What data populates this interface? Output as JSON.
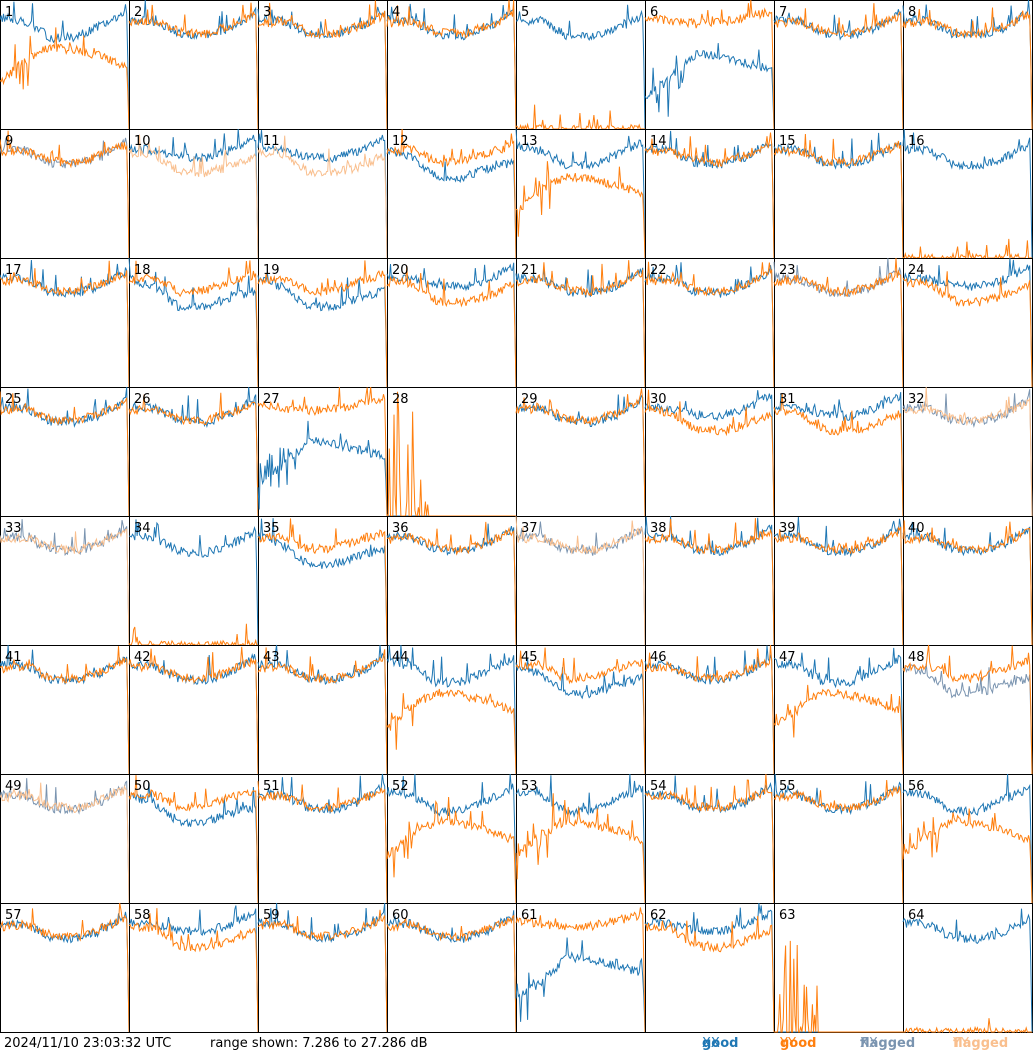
{
  "footer": {
    "timestamp": "2024/11/10 23:03:32 UTC",
    "range_text": "range shown: 7.286 to 27.286 dB"
  },
  "legend": [
    {
      "word": "good",
      "pol": "XX",
      "color": "#1f77b4"
    },
    {
      "word": "good",
      "pol": "YY",
      "color": "#ff7f0e"
    },
    {
      "word": "flagged",
      "pol": "XX",
      "color": "#7a94b0"
    },
    {
      "word": "flagged",
      "pol": "YY",
      "color": "#f9bf8e"
    }
  ],
  "colors": {
    "good_xx": "#1f77b4",
    "good_yy": "#ff7f0e",
    "flagged_xx": "#7a94b0",
    "flagged_yy": "#f9bf8e"
  },
  "chart_data": {
    "type": "line",
    "layout": "8x8 grid of small multiples (antenna spectra)",
    "ylim": [
      7.286,
      27.286
    ],
    "yunit": "dB",
    "styles": {
      "standard": {
        "xx": [
          24.2,
          24.0,
          22.0,
          21.8,
          23.0,
          25.5,
          7.286
        ],
        "yy": [
          23.6,
          24.0,
          22.3,
          22.0,
          23.3,
          25.0,
          7.286
        ]
      },
      "xx_high": {
        "xx": [
          24.2,
          24.0,
          23.0,
          22.8,
          24.0,
          26.0,
          7.286
        ],
        "yy": [
          23.6,
          23.4,
          20.6,
          20.4,
          21.5,
          23.2,
          7.286
        ]
      },
      "yy_high": {
        "xx": [
          24.0,
          22.8,
          19.6,
          19.8,
          21.2,
          22.2,
          7.286
        ],
        "yy": [
          23.8,
          24.2,
          22.0,
          22.3,
          23.6,
          24.8,
          7.286
        ]
      },
      "yy_rolloff": {
        "xx": [
          24.6,
          24.0,
          21.4,
          21.6,
          23.4,
          25.2,
          7.286
        ],
        "yy": [
          14.5,
          18.0,
          20.0,
          19.5,
          18.6,
          17.0,
          7.286
        ]
      },
      "xx_rolloff": {
        "xx": [
          12.5,
          15.0,
          19.0,
          18.5,
          17.5,
          16.5,
          7.286
        ],
        "yy": [
          24.6,
          24.0,
          23.6,
          23.8,
          24.6,
          25.5,
          7.286
        ]
      },
      "noise": {
        "xx": [
          7.286,
          7.286,
          7.286,
          7.286,
          7.286,
          7.286,
          7.286
        ],
        "yy": [
          7.286,
          7.286,
          7.286,
          7.286,
          7.286,
          7.286,
          7.286
        ]
      },
      "xx_only": {
        "xx": [
          24.2,
          24.0,
          21.8,
          21.6,
          22.8,
          25.0,
          7.286
        ],
        "yy": [
          7.286,
          7.286,
          7.286,
          7.286,
          7.286,
          7.286,
          7.286
        ]
      }
    },
    "panels": [
      {
        "id": "1",
        "style": "yy_rolloff",
        "flag": "none"
      },
      {
        "id": "2",
        "style": "standard",
        "flag": "none"
      },
      {
        "id": "3",
        "style": "standard",
        "flag": "none"
      },
      {
        "id": "4",
        "style": "standard",
        "flag": "none"
      },
      {
        "id": "5",
        "style": "xx_only",
        "flag": "none"
      },
      {
        "id": "6",
        "style": "xx_rolloff",
        "flag": "none"
      },
      {
        "id": "7",
        "style": "standard",
        "flag": "none"
      },
      {
        "id": "8",
        "style": "standard",
        "flag": "none"
      },
      {
        "id": "9",
        "style": "standard",
        "flag": "xx"
      },
      {
        "id": "10",
        "style": "xx_high",
        "flag": "yy"
      },
      {
        "id": "11",
        "style": "xx_high",
        "flag": "yy"
      },
      {
        "id": "12",
        "style": "yy_high",
        "flag": "none"
      },
      {
        "id": "13",
        "style": "yy_rolloff",
        "flag": "none"
      },
      {
        "id": "14",
        "style": "standard",
        "flag": "none"
      },
      {
        "id": "15",
        "style": "standard",
        "flag": "none"
      },
      {
        "id": "16",
        "style": "xx_only",
        "flag": "none"
      },
      {
        "id": "17",
        "style": "standard",
        "flag": "none"
      },
      {
        "id": "18",
        "style": "yy_high",
        "flag": "none"
      },
      {
        "id": "19",
        "style": "yy_high",
        "flag": "none"
      },
      {
        "id": "20",
        "style": "xx_high",
        "flag": "none"
      },
      {
        "id": "21",
        "style": "standard",
        "flag": "none"
      },
      {
        "id": "22",
        "style": "standard",
        "flag": "none"
      },
      {
        "id": "23",
        "style": "standard",
        "flag": "xx"
      },
      {
        "id": "24",
        "style": "xx_high",
        "flag": "none"
      },
      {
        "id": "25",
        "style": "standard",
        "flag": "none"
      },
      {
        "id": "26",
        "style": "standard",
        "flag": "none"
      },
      {
        "id": "27",
        "style": "xx_rolloff",
        "flag": "none"
      },
      {
        "id": "28",
        "style": "noise",
        "flag": "none"
      },
      {
        "id": "29",
        "style": "standard",
        "flag": "none"
      },
      {
        "id": "30",
        "style": "xx_high",
        "flag": "none"
      },
      {
        "id": "31",
        "style": "xx_high",
        "flag": "none"
      },
      {
        "id": "32",
        "style": "standard",
        "flag": "both"
      },
      {
        "id": "33",
        "style": "standard",
        "flag": "both"
      },
      {
        "id": "34",
        "style": "xx_only",
        "flag": "none"
      },
      {
        "id": "35",
        "style": "yy_high",
        "flag": "none"
      },
      {
        "id": "36",
        "style": "standard",
        "flag": "none"
      },
      {
        "id": "37",
        "style": "standard",
        "flag": "both"
      },
      {
        "id": "38",
        "style": "standard",
        "flag": "none"
      },
      {
        "id": "39",
        "style": "standard",
        "flag": "none"
      },
      {
        "id": "40",
        "style": "standard",
        "flag": "none"
      },
      {
        "id": "41",
        "style": "standard",
        "flag": "none"
      },
      {
        "id": "42",
        "style": "standard",
        "flag": "none"
      },
      {
        "id": "43",
        "style": "standard",
        "flag": "none"
      },
      {
        "id": "44",
        "style": "yy_rolloff",
        "flag": "none"
      },
      {
        "id": "45",
        "style": "yy_high",
        "flag": "none"
      },
      {
        "id": "46",
        "style": "standard",
        "flag": "none"
      },
      {
        "id": "47",
        "style": "yy_rolloff",
        "flag": "none"
      },
      {
        "id": "48",
        "style": "yy_high",
        "flag": "xx"
      },
      {
        "id": "49",
        "style": "standard",
        "flag": "both"
      },
      {
        "id": "50",
        "style": "yy_high",
        "flag": "none"
      },
      {
        "id": "51",
        "style": "standard",
        "flag": "none"
      },
      {
        "id": "52",
        "style": "yy_rolloff",
        "flag": "none"
      },
      {
        "id": "53",
        "style": "yy_rolloff",
        "flag": "none"
      },
      {
        "id": "54",
        "style": "standard",
        "flag": "none"
      },
      {
        "id": "55",
        "style": "standard",
        "flag": "none"
      },
      {
        "id": "56",
        "style": "yy_rolloff",
        "flag": "none"
      },
      {
        "id": "57",
        "style": "standard",
        "flag": "none"
      },
      {
        "id": "58",
        "style": "xx_high",
        "flag": "none"
      },
      {
        "id": "59",
        "style": "standard",
        "flag": "none"
      },
      {
        "id": "60",
        "style": "standard",
        "flag": "none"
      },
      {
        "id": "61",
        "style": "xx_rolloff",
        "flag": "none"
      },
      {
        "id": "62",
        "style": "xx_high",
        "flag": "none"
      },
      {
        "id": "63",
        "style": "noise",
        "flag": "none"
      },
      {
        "id": "64",
        "style": "xx_only",
        "flag": "none"
      }
    ]
  }
}
